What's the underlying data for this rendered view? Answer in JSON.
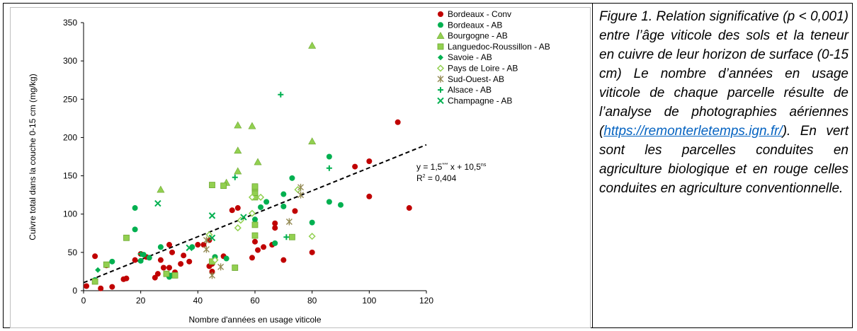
{
  "chart_data": {
    "type": "scatter",
    "xlabel": "Nombre d'années en usage viticole",
    "ylabel": "Cuivre total dans la couche 0-15 cm  (mg/kg)",
    "xlim": [
      0,
      120
    ],
    "ylim": [
      0,
      350
    ],
    "xticks": [
      "0",
      "20",
      "40",
      "60",
      "80",
      "100",
      "120"
    ],
    "yticks": [
      "0",
      "50",
      "100",
      "150",
      "200",
      "250",
      "300",
      "350"
    ],
    "grid": false,
    "legend_position": "top-right",
    "series": [
      {
        "name": "Bordeaux - Conv",
        "marker": "circle",
        "color": "#c00000",
        "points": [
          [
            1,
            6
          ],
          [
            4,
            45
          ],
          [
            6,
            3
          ],
          [
            8,
            33
          ],
          [
            10,
            5
          ],
          [
            14,
            15
          ],
          [
            15,
            16
          ],
          [
            18,
            40
          ],
          [
            20,
            48
          ],
          [
            22,
            44
          ],
          [
            25,
            17
          ],
          [
            26,
            22
          ],
          [
            27,
            40
          ],
          [
            28,
            30
          ],
          [
            30,
            30
          ],
          [
            30,
            60
          ],
          [
            31,
            50
          ],
          [
            32,
            24
          ],
          [
            34,
            35
          ],
          [
            35,
            46
          ],
          [
            37,
            38
          ],
          [
            40,
            60
          ],
          [
            42,
            60
          ],
          [
            44,
            66
          ],
          [
            44,
            32
          ],
          [
            45,
            35
          ],
          [
            45,
            25
          ],
          [
            46,
            44
          ],
          [
            49,
            45
          ],
          [
            52,
            105
          ],
          [
            54,
            108
          ],
          [
            59,
            43
          ],
          [
            60,
            64
          ],
          [
            61,
            53
          ],
          [
            63,
            57
          ],
          [
            66,
            60
          ],
          [
            67,
            88
          ],
          [
            67,
            82
          ],
          [
            70,
            40
          ],
          [
            74,
            104
          ],
          [
            80,
            50
          ],
          [
            95,
            162
          ],
          [
            100,
            169
          ],
          [
            100,
            123
          ],
          [
            110,
            220
          ],
          [
            114,
            108
          ]
        ]
      },
      {
        "name": "Bordeaux - AB",
        "marker": "circle",
        "color": "#00b050",
        "points": [
          [
            4,
            14
          ],
          [
            10,
            38
          ],
          [
            18,
            80
          ],
          [
            18,
            108
          ],
          [
            20,
            39
          ],
          [
            21,
            47
          ],
          [
            23,
            43
          ],
          [
            27,
            57
          ],
          [
            30,
            20
          ],
          [
            30,
            18
          ],
          [
            31,
            20
          ],
          [
            38,
            57
          ],
          [
            46,
            44
          ],
          [
            50,
            42
          ],
          [
            60,
            93
          ],
          [
            62,
            109
          ],
          [
            64,
            116
          ],
          [
            67,
            62
          ],
          [
            70,
            110
          ],
          [
            70,
            126
          ],
          [
            73,
            147
          ],
          [
            80,
            89
          ],
          [
            86,
            175
          ],
          [
            86,
            116
          ],
          [
            90,
            112
          ]
        ]
      },
      {
        "name": "Bourgogne - AB",
        "marker": "triangle",
        "color": "#92d050",
        "points": [
          [
            27,
            132
          ],
          [
            50,
            141
          ],
          [
            54,
            216
          ],
          [
            54,
            183
          ],
          [
            54,
            156
          ],
          [
            59,
            215
          ],
          [
            61,
            168
          ],
          [
            80,
            320
          ],
          [
            80,
            195
          ]
        ]
      },
      {
        "name": "Languedoc-Roussillon - AB",
        "marker": "square",
        "color": "#92d050",
        "points": [
          [
            4,
            12
          ],
          [
            8,
            34
          ],
          [
            15,
            69
          ],
          [
            29,
            22
          ],
          [
            32,
            20
          ],
          [
            45,
            38
          ],
          [
            45,
            138
          ],
          [
            49,
            137
          ],
          [
            53,
            30
          ],
          [
            60,
            122
          ],
          [
            60,
            128
          ],
          [
            60,
            134
          ],
          [
            60,
            136
          ],
          [
            60,
            86
          ],
          [
            60,
            72
          ],
          [
            73,
            70
          ]
        ]
      },
      {
        "name": "Savoie - AB",
        "marker": "diamond",
        "color": "#00b050",
        "points": [
          [
            5,
            27
          ]
        ]
      },
      {
        "name": "Pays de Loire - AB",
        "marker": "diamond-open",
        "color": "#92d050",
        "points": [
          [
            44,
            73
          ],
          [
            54,
            82
          ],
          [
            55,
            92
          ],
          [
            59,
            122
          ],
          [
            59,
            101
          ],
          [
            62,
            122
          ],
          [
            75,
            132
          ],
          [
            80,
            71
          ],
          [
            46,
            40
          ]
        ]
      },
      {
        "name": "Sud-Ouest- AB",
        "marker": "asterisk",
        "color": "#948a54",
        "points": [
          [
            43,
            66
          ],
          [
            43,
            54
          ],
          [
            45,
            20
          ],
          [
            48,
            31
          ],
          [
            72,
            90
          ],
          [
            76,
            135
          ],
          [
            76,
            125
          ]
        ]
      },
      {
        "name": "Alsace - AB",
        "marker": "plus",
        "color": "#00b050",
        "points": [
          [
            20,
            48
          ],
          [
            53,
            148
          ],
          [
            69,
            256
          ],
          [
            71,
            70
          ],
          [
            86,
            160
          ]
        ]
      },
      {
        "name": "Champagne - AB",
        "marker": "x",
        "color": "#00b050",
        "points": [
          [
            26,
            114
          ],
          [
            37,
            56
          ],
          [
            45,
            98
          ],
          [
            56,
            96
          ],
          [
            45,
            69
          ]
        ]
      }
    ],
    "trendline": {
      "type": "linear",
      "slope": 1.5,
      "intercept": 10.5,
      "x_range": [
        0,
        120
      ],
      "style": "dashed",
      "color": "#000000",
      "equation_main": "y = 1,5",
      "slope_significance": "***",
      "equation_mid": " x + 10,5",
      "intercept_significance": "ns",
      "r2_prefix": "R",
      "r2_exponent": "2",
      "r2_value": " = 0,404"
    }
  },
  "caption": {
    "before_link": "Figure 1. Relation significative (p < 0,001) entre l’âge viticole des sols et la teneur en cuivre de leur horizon de surface (0-15 cm) Le nombre d’années en usage viticole de chaque parcelle résulte de l’analyse de photographies aériennes (",
    "link": "https://remonterletemps.ign.fr/",
    "after_link": "). En vert sont les parcelles conduites en agriculture biologique et en rouge celles conduites en agriculture conventionnelle."
  }
}
